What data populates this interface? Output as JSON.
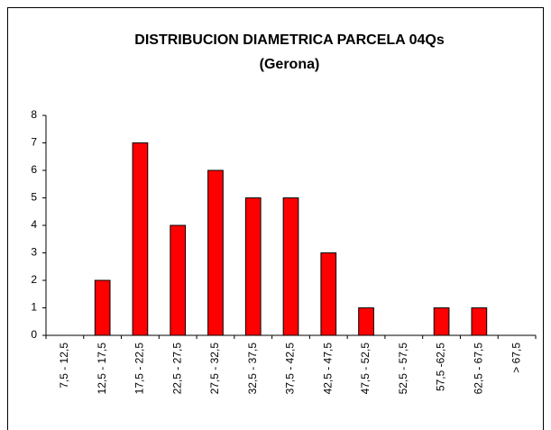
{
  "chart_data": {
    "type": "bar",
    "title": "DISTRIBUCION DIAMETRICA PARCELA 04Qs",
    "subtitle": "(Gerona)",
    "categories": [
      "7,5 - 12,5",
      "12,5 - 17,5",
      "17,5 - 22,5",
      "22,5 - 27,5",
      "27,5 - 32,5",
      "32,5 - 37,5",
      "37,5 - 42,5",
      "42,5 - 47,5",
      "47,5 - 52,5",
      "52,5 - 57,5",
      "57,5 -62,5",
      "62,5 - 67,5",
      "> 67,5"
    ],
    "values": [
      0,
      2,
      7,
      4,
      6,
      5,
      5,
      3,
      1,
      0,
      1,
      1,
      0
    ],
    "color": "#ff0000",
    "ylim": [
      0,
      8
    ],
    "yticks": [
      0,
      1,
      2,
      3,
      4,
      5,
      6,
      7,
      8
    ],
    "grid": false
  }
}
